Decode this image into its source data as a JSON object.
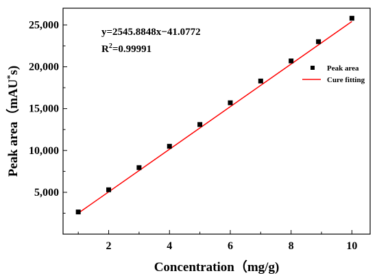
{
  "chart_data": {
    "type": "scatter",
    "xlabel": "Concentration（mg/g)",
    "ylabel": "Peak area（mAU*s)",
    "ylabel_parts": {
      "main": "Peak area（mAU",
      "sup": "*",
      "tail": "s)"
    },
    "xlim": [
      0.5,
      10.6
    ],
    "ylim": [
      0,
      27000
    ],
    "x_ticks": [
      {
        "value": 1,
        "label": ""
      },
      {
        "value": 2,
        "label": "2"
      },
      {
        "value": 3,
        "label": ""
      },
      {
        "value": 4,
        "label": "4"
      },
      {
        "value": 5,
        "label": ""
      },
      {
        "value": 6,
        "label": "6"
      },
      {
        "value": 7,
        "label": ""
      },
      {
        "value": 8,
        "label": "8"
      },
      {
        "value": 9,
        "label": ""
      },
      {
        "value": 10,
        "label": "10"
      }
    ],
    "y_ticks": [
      {
        "value": 2500,
        "label": ""
      },
      {
        "value": 5000,
        "label": "5,000"
      },
      {
        "value": 7500,
        "label": ""
      },
      {
        "value": 10000,
        "label": "10,000"
      },
      {
        "value": 12500,
        "label": ""
      },
      {
        "value": 15000,
        "label": "15,000"
      },
      {
        "value": 17500,
        "label": ""
      },
      {
        "value": 20000,
        "label": "20,000"
      },
      {
        "value": 22500,
        "label": ""
      },
      {
        "value": 25000,
        "label": "25,000"
      }
    ],
    "series": [
      {
        "name": "Peak area",
        "kind": "scatter",
        "marker": "square",
        "color": "#000000",
        "x": [
          1,
          2,
          3,
          4,
          5,
          6,
          7,
          8,
          8.9,
          10
        ],
        "y": [
          2650,
          5300,
          7950,
          10500,
          13100,
          15700,
          18300,
          20700,
          23000,
          25800
        ]
      },
      {
        "name": "Cure fitting",
        "kind": "line",
        "color": "#ff0000",
        "x": [
          1,
          10
        ],
        "y": [
          2505,
          25418
        ]
      }
    ],
    "annotations": {
      "equation": "y=2545.8848x−41.0772",
      "r2_prefix": "R",
      "r2_sup": "2",
      "r2_value": "=0.99991"
    },
    "legend_position": "right",
    "grid": false
  }
}
